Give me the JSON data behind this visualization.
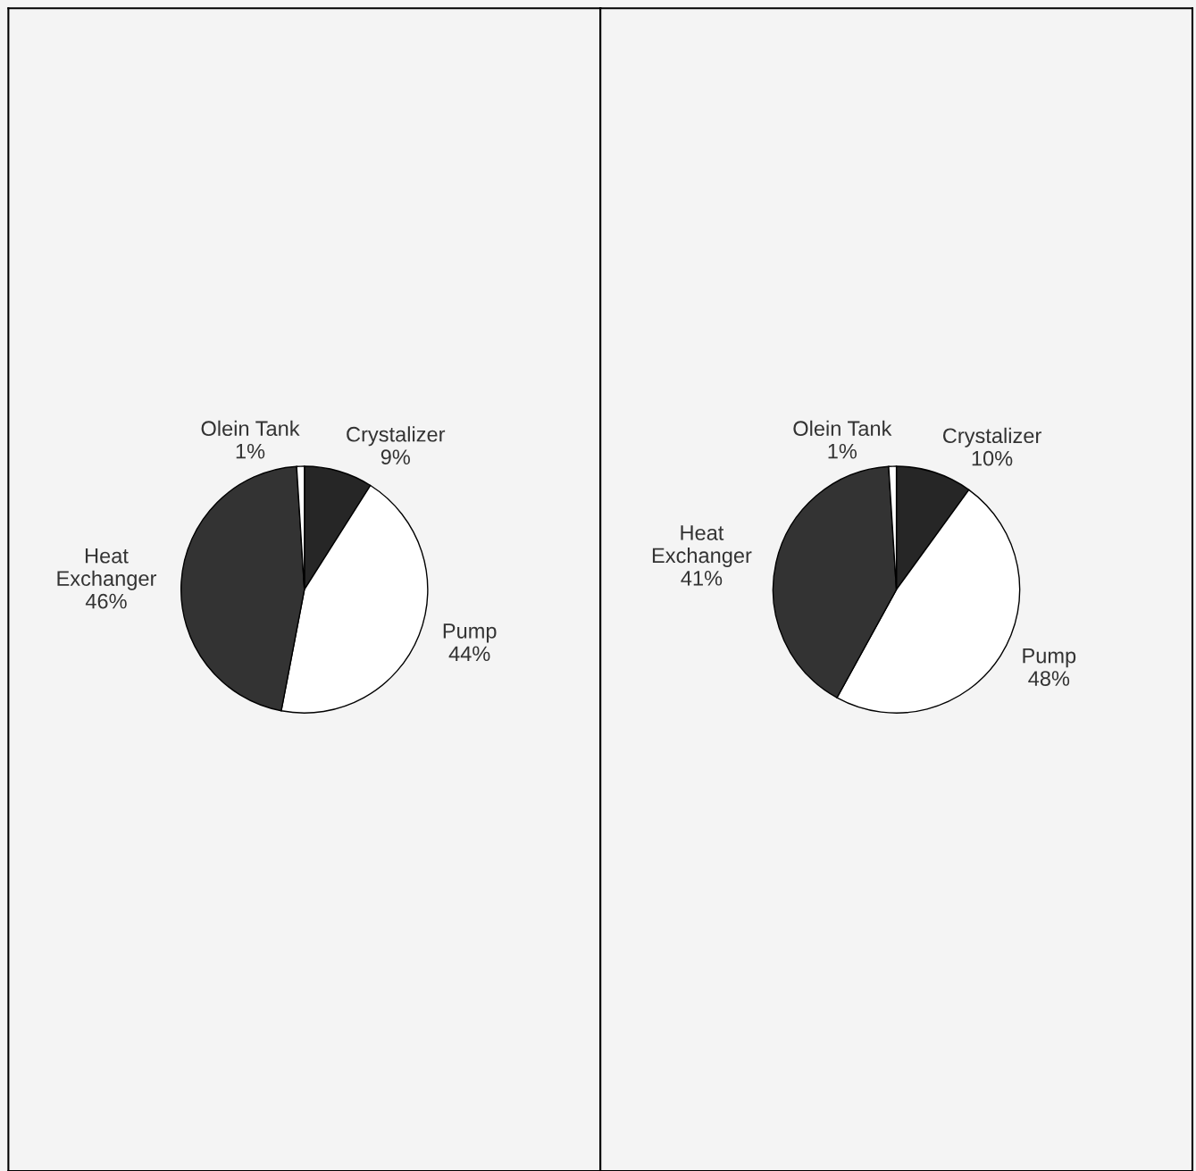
{
  "chart_data": [
    {
      "type": "pie",
      "categories": [
        "Crystalizer",
        "Pump",
        "Heat Exchanger",
        "Olein Tank"
      ],
      "values": [
        9,
        44,
        46,
        1
      ],
      "value_labels": [
        "9%",
        "44%",
        "46%",
        "1%"
      ],
      "colors": [
        "#262626",
        "#ffffff",
        "#333333",
        "#ffffff"
      ]
    },
    {
      "type": "pie",
      "categories": [
        "Crystalizer",
        "Pump",
        "Heat Exchanger",
        "Olein Tank"
      ],
      "values": [
        10,
        48,
        41,
        1
      ],
      "value_labels": [
        "10%",
        "48%",
        "41%",
        "1%"
      ],
      "colors": [
        "#262626",
        "#ffffff",
        "#333333",
        "#ffffff"
      ]
    }
  ]
}
